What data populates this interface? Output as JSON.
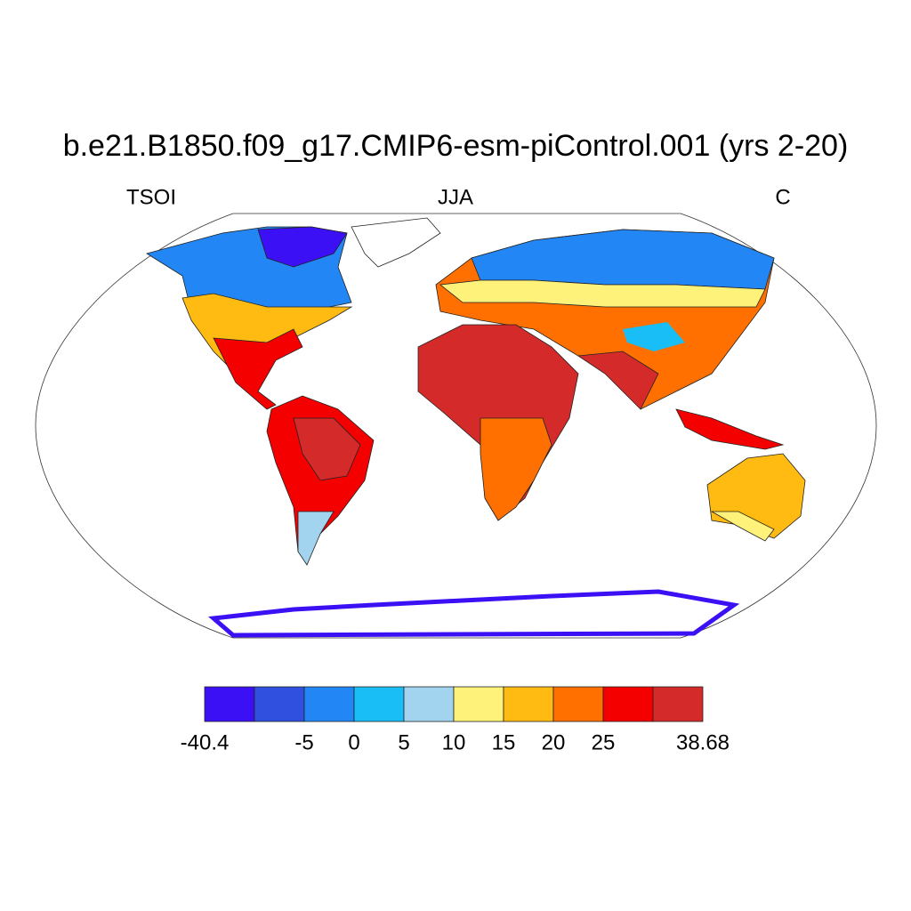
{
  "title": "b.e21.B1850.f09_g17.CMIP6-esm-piControl.001 (yrs 2-20)",
  "left_string": "TSOI",
  "center_string": "JJA",
  "right_string": "C",
  "colorbar": {
    "colors": [
      "#3c10f5",
      "#3050e0",
      "#2286f5",
      "#18bef5",
      "#a2d4f0",
      "#fff27a",
      "#ffbb12",
      "#ff7000",
      "#f50000",
      "#d42a2a"
    ],
    "levels": [
      -40.4,
      null,
      -5,
      0,
      5,
      10,
      15,
      20,
      25,
      null,
      38.68
    ]
  }
}
